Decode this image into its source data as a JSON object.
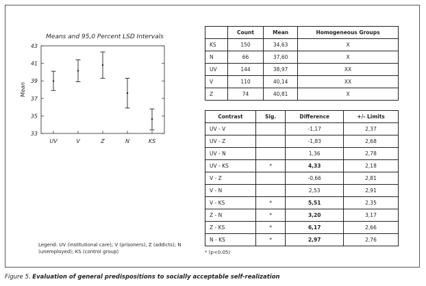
{
  "chart_data": {
    "type": "scatter",
    "title": "Means and 95,0 Percent LSD Intervals",
    "ylabel": "Mean",
    "xlabel": "",
    "categories": [
      "UV",
      "V",
      "Z",
      "N",
      "KS"
    ],
    "means": [
      38.97,
      40.14,
      40.81,
      37.6,
      34.63
    ],
    "lower": [
      37.9,
      38.9,
      39.3,
      35.9,
      33.4
    ],
    "upper": [
      40.1,
      41.4,
      42.3,
      39.3,
      35.8
    ],
    "ylim": [
      33,
      43
    ],
    "yticks": [
      "33",
      "35",
      "37",
      "39",
      "41",
      "43"
    ]
  },
  "means_table": {
    "headers": [
      "",
      "Count",
      "Mean",
      "Homogeneous Groups"
    ],
    "rows": [
      [
        "KS",
        "150",
        "34,63",
        "X"
      ],
      [
        "N",
        "66",
        "37,60",
        "X"
      ],
      [
        "UV",
        "144",
        "38,97",
        "XX"
      ],
      [
        "V",
        "110",
        "40,14",
        "XX"
      ],
      [
        "Z",
        "74",
        "40,81",
        "X"
      ]
    ]
  },
  "contrast_table": {
    "headers": [
      "Contrast",
      "Sig.",
      "Difference",
      "+/- Limits"
    ],
    "rows": [
      {
        "contrast": "UV - V",
        "sig": "",
        "diff": "-1,17",
        "limit": "2,37",
        "bold": false
      },
      {
        "contrast": "UV - Z",
        "sig": "",
        "diff": "-1,83",
        "limit": "2,68",
        "bold": false
      },
      {
        "contrast": "UV - N",
        "sig": "",
        "diff": "1,36",
        "limit": "2,78",
        "bold": false
      },
      {
        "contrast": "UV - KS",
        "sig": "*",
        "diff": "4,33",
        "limit": "2,18",
        "bold": true
      },
      {
        "contrast": "V - Z",
        "sig": "",
        "diff": "-0,66",
        "limit": "2,81",
        "bold": false
      },
      {
        "contrast": "V - N",
        "sig": "",
        "diff": "2,53",
        "limit": "2,91",
        "bold": false
      },
      {
        "contrast": "V - KS",
        "sig": "*",
        "diff": "5,51",
        "limit": "2,35",
        "bold": true
      },
      {
        "contrast": "Z - N",
        "sig": "*",
        "diff": "3,20",
        "limit": "3,17",
        "bold": true
      },
      {
        "contrast": "Z - KS",
        "sig": "*",
        "diff": "6,17",
        "limit": "2,66",
        "bold": true
      },
      {
        "contrast": "N - KS",
        "sig": "*",
        "diff": "2,97",
        "limit": "2,76",
        "bold": true
      }
    ]
  },
  "legend": "Legend: UV (institutional care); V (prisoners), Z (addicts); N (unemployed); KS (control group)",
  "footnote": "* (p<0.05)",
  "caption": {
    "label": "Figure 5.",
    "text": "Evaluation of general predispositions to socially acceptable self-realization"
  }
}
